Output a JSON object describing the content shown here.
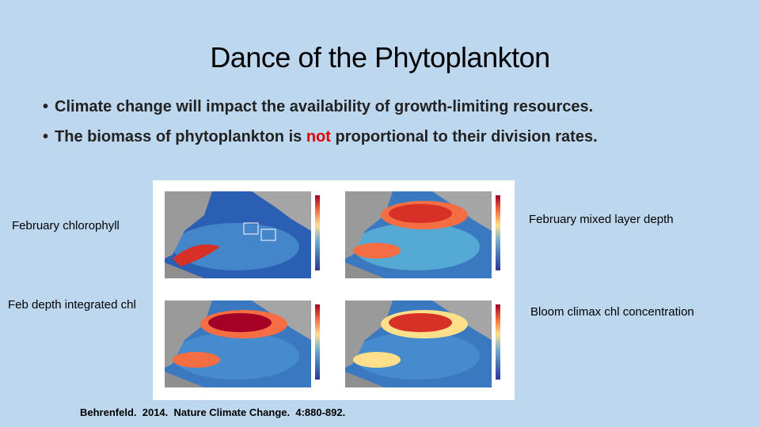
{
  "header": {
    "title": "Dance of the Phytoplankton"
  },
  "bullets": [
    {
      "text": "Climate change will impact the availability of growth-limiting resources."
    },
    {
      "before": "The biomass of phytoplankton is ",
      "highlight": "not",
      "after": " proportional to their division rates."
    }
  ],
  "figure": {
    "labels": [
      "February chlorophyll",
      "February mixed layer depth",
      "Feb depth integrated chl",
      "Bloom climax chl concentration"
    ]
  },
  "citation": "Behrenfeld.  2014.  Nature Climate Change.  4:880-892."
}
